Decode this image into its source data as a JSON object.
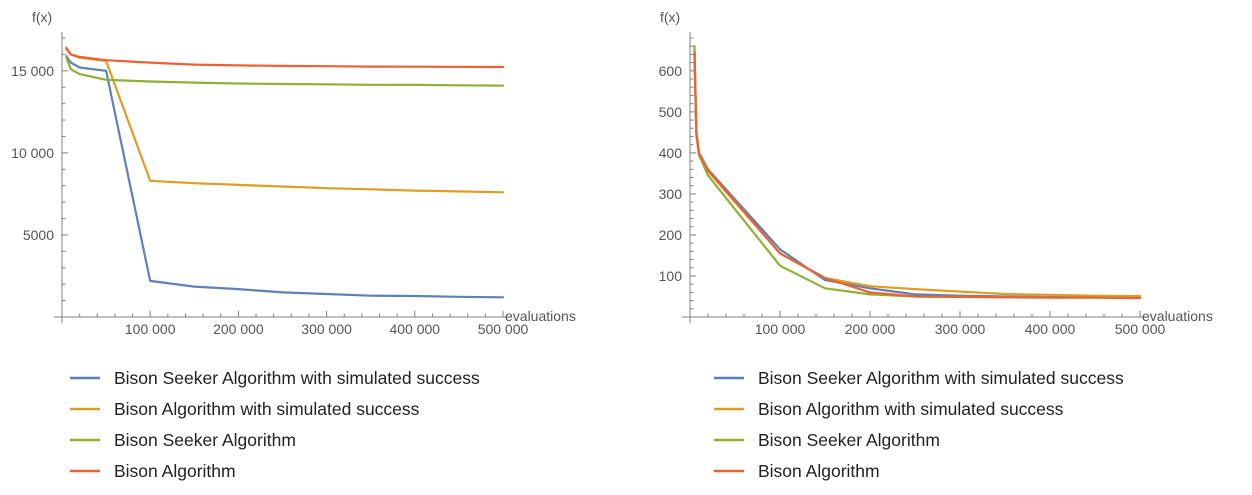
{
  "chart_data": [
    {
      "type": "line",
      "title": "",
      "xlabel": "evaluations",
      "ylabel": "f(x)",
      "xlim": [
        0,
        500000
      ],
      "ylim": [
        0,
        17000
      ],
      "x_ticks": [
        100000,
        200000,
        300000,
        400000,
        500000
      ],
      "x_tick_labels": [
        "100 000",
        "200 000",
        "300 000",
        "400 000",
        "500 000"
      ],
      "x_minor_step": 20000,
      "y_ticks": [
        5000,
        10000,
        15000
      ],
      "y_tick_labels": [
        "5000",
        "10 000",
        "15 000"
      ],
      "y_minor_step": 1000,
      "grid": false,
      "legend_position": "bottom-left",
      "series": [
        {
          "name": "Bison Seeker Algorithm with simulated success",
          "color": "#5E81B5",
          "x": [
            5000,
            10000,
            20000,
            50000,
            100000,
            150000,
            200000,
            250000,
            300000,
            350000,
            400000,
            450000,
            500000
          ],
          "y": [
            15900,
            15500,
            15200,
            15000,
            2200,
            1850,
            1700,
            1500,
            1400,
            1300,
            1280,
            1230,
            1200
          ]
        },
        {
          "name": "Bison Algorithm with simulated success",
          "color": "#E19C24",
          "x": [
            5000,
            10000,
            20000,
            50000,
            100000,
            150000,
            200000,
            250000,
            300000,
            350000,
            400000,
            450000,
            500000
          ],
          "y": [
            16300,
            16000,
            15800,
            15600,
            8300,
            8150,
            8050,
            7950,
            7850,
            7780,
            7700,
            7650,
            7600
          ]
        },
        {
          "name": "Bison Seeker Algorithm",
          "color": "#8FB032",
          "x": [
            5000,
            10000,
            20000,
            50000,
            100000,
            150000,
            200000,
            250000,
            300000,
            350000,
            400000,
            450000,
            500000
          ],
          "y": [
            15800,
            15100,
            14800,
            14450,
            14350,
            14280,
            14230,
            14200,
            14180,
            14150,
            14140,
            14120,
            14100
          ]
        },
        {
          "name": "Bison Algorithm",
          "color": "#EB6235",
          "x": [
            5000,
            10000,
            20000,
            50000,
            100000,
            150000,
            200000,
            250000,
            300000,
            350000,
            400000,
            450000,
            500000
          ],
          "y": [
            16400,
            16000,
            15850,
            15650,
            15500,
            15380,
            15330,
            15300,
            15280,
            15260,
            15250,
            15240,
            15230
          ]
        }
      ]
    },
    {
      "type": "line",
      "title": "",
      "xlabel": "evaluations",
      "ylabel": "f(x)",
      "xlim": [
        0,
        500000
      ],
      "ylim": [
        0,
        680
      ],
      "x_ticks": [
        100000,
        200000,
        300000,
        400000,
        500000
      ],
      "x_tick_labels": [
        "100 000",
        "200 000",
        "300 000",
        "400 000",
        "500 000"
      ],
      "x_minor_step": 20000,
      "y_ticks": [
        100,
        200,
        300,
        400,
        500,
        600
      ],
      "y_tick_labels": [
        "100",
        "200",
        "300",
        "400",
        "500",
        "600"
      ],
      "y_minor_step": 20,
      "grid": false,
      "legend_position": "bottom-left",
      "series": [
        {
          "name": "Bison Seeker Algorithm with simulated success",
          "color": "#5E81B5",
          "x": [
            5000,
            7000,
            10000,
            20000,
            100000,
            150000,
            200000,
            250000,
            300000,
            350000,
            400000,
            450000,
            500000
          ],
          "y": [
            640,
            450,
            400,
            360,
            165,
            90,
            70,
            55,
            52,
            50,
            49,
            48,
            47
          ]
        },
        {
          "name": "Bison Algorithm with simulated success",
          "color": "#E19C24",
          "x": [
            5000,
            7000,
            10000,
            20000,
            100000,
            150000,
            200000,
            250000,
            300000,
            350000,
            400000,
            450000,
            500000
          ],
          "y": [
            650,
            455,
            400,
            355,
            155,
            95,
            75,
            68,
            62,
            56,
            54,
            52,
            51
          ]
        },
        {
          "name": "Bison Seeker Algorithm",
          "color": "#8FB032",
          "x": [
            5000,
            7000,
            10000,
            20000,
            100000,
            150000,
            200000,
            250000,
            300000,
            350000,
            400000,
            450000,
            500000
          ],
          "y": [
            660,
            445,
            395,
            345,
            125,
            70,
            55,
            50,
            49,
            48,
            48,
            48,
            47
          ]
        },
        {
          "name": "Bison Algorithm",
          "color": "#EB6235",
          "x": [
            5000,
            7000,
            10000,
            20000,
            100000,
            150000,
            200000,
            250000,
            300000,
            350000,
            400000,
            450000,
            500000
          ],
          "y": [
            645,
            450,
            398,
            358,
            155,
            95,
            60,
            50,
            49,
            48,
            47,
            47,
            46
          ]
        }
      ]
    }
  ]
}
